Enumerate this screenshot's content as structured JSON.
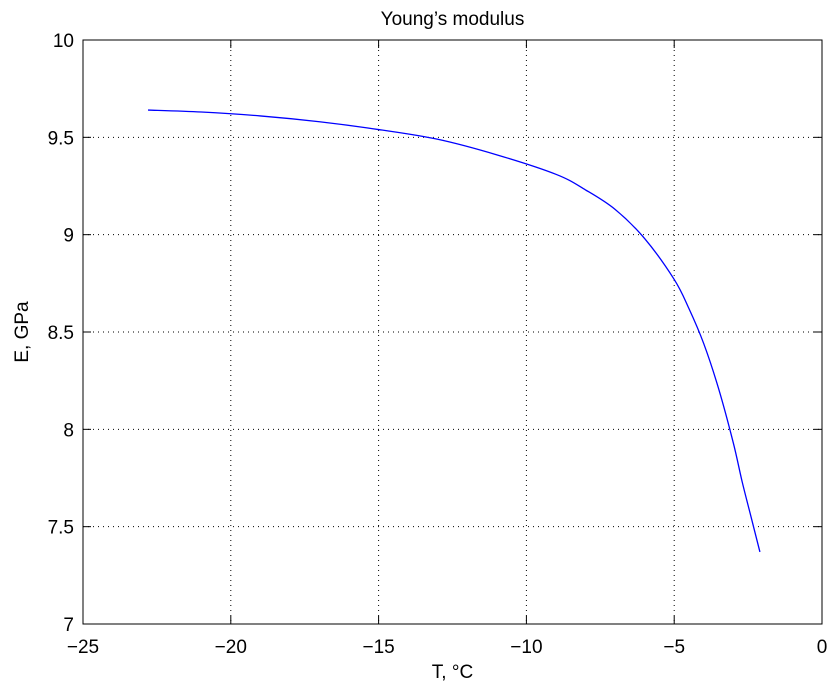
{
  "chart_data": {
    "type": "line",
    "title": "Young’s modulus",
    "xlabel": "T, °C",
    "ylabel": "E, GPa",
    "xlim": [
      -25,
      0
    ],
    "ylim": [
      7,
      10
    ],
    "xticks": [
      -25,
      -20,
      -15,
      -10,
      -5,
      0
    ],
    "yticks": [
      7,
      7.5,
      8,
      8.5,
      9,
      9.5,
      10
    ],
    "xtick_labels": [
      "−25",
      "−20",
      "−15",
      "−10",
      "−5",
      "0"
    ],
    "ytick_labels": [
      "7",
      "7.5",
      "8",
      "8.5",
      "9",
      "9.5",
      "10"
    ],
    "grid": true,
    "series": [
      {
        "color": "#0000ff",
        "x": [
          -22.8,
          -21,
          -19,
          -17,
          -15,
          -13,
          -11,
          -9,
          -8,
          -7,
          -6,
          -5,
          -4.5,
          -4,
          -3.5,
          -3,
          -2.7,
          -2.4,
          -2.1
        ],
        "y": [
          9.64,
          9.63,
          9.61,
          9.58,
          9.54,
          9.49,
          9.41,
          9.31,
          9.23,
          9.13,
          8.98,
          8.77,
          8.62,
          8.44,
          8.21,
          7.93,
          7.73,
          7.55,
          7.37
        ]
      }
    ]
  }
}
